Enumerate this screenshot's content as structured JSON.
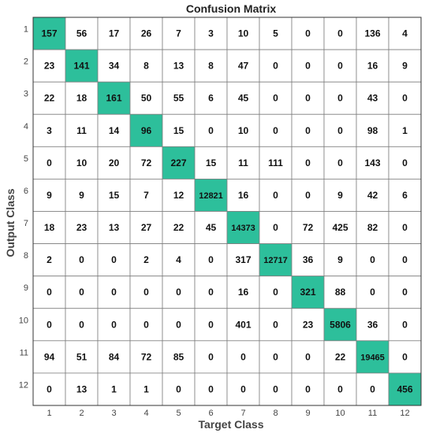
{
  "chart_data": {
    "type": "heatmap",
    "title": "Confusion Matrix",
    "xlabel": "Target Class",
    "ylabel": "Output Class",
    "x_categories": [
      "1",
      "2",
      "3",
      "4",
      "5",
      "6",
      "7",
      "8",
      "9",
      "10",
      "11",
      "12"
    ],
    "y_categories": [
      "1",
      "2",
      "3",
      "4",
      "5",
      "6",
      "7",
      "8",
      "9",
      "10",
      "11",
      "12"
    ],
    "values": [
      [
        157,
        56,
        17,
        26,
        7,
        3,
        10,
        5,
        0,
        0,
        136,
        4
      ],
      [
        23,
        141,
        34,
        8,
        13,
        8,
        47,
        0,
        0,
        0,
        16,
        9
      ],
      [
        22,
        18,
        161,
        50,
        55,
        6,
        45,
        0,
        0,
        0,
        43,
        0
      ],
      [
        3,
        11,
        14,
        96,
        15,
        0,
        10,
        0,
        0,
        0,
        98,
        1
      ],
      [
        0,
        10,
        20,
        72,
        227,
        15,
        11,
        111,
        0,
        0,
        143,
        0
      ],
      [
        9,
        9,
        15,
        7,
        12,
        12821,
        16,
        0,
        0,
        9,
        42,
        6
      ],
      [
        18,
        23,
        13,
        27,
        22,
        45,
        14373,
        0,
        72,
        425,
        82,
        0
      ],
      [
        2,
        0,
        0,
        2,
        4,
        0,
        317,
        12717,
        36,
        9,
        0,
        0
      ],
      [
        0,
        0,
        0,
        0,
        0,
        0,
        16,
        0,
        321,
        88,
        0,
        0
      ],
      [
        0,
        0,
        0,
        0,
        0,
        0,
        401,
        0,
        23,
        5806,
        36,
        0
      ],
      [
        94,
        51,
        84,
        72,
        85,
        0,
        0,
        0,
        0,
        22,
        19465,
        0
      ],
      [
        0,
        13,
        1,
        1,
        0,
        0,
        0,
        0,
        0,
        0,
        0,
        456
      ]
    ],
    "diagonal_color": "#2dbf9b",
    "offdiagonal_color": "#ffffff",
    "grid_color": "#7f7f7f"
  }
}
